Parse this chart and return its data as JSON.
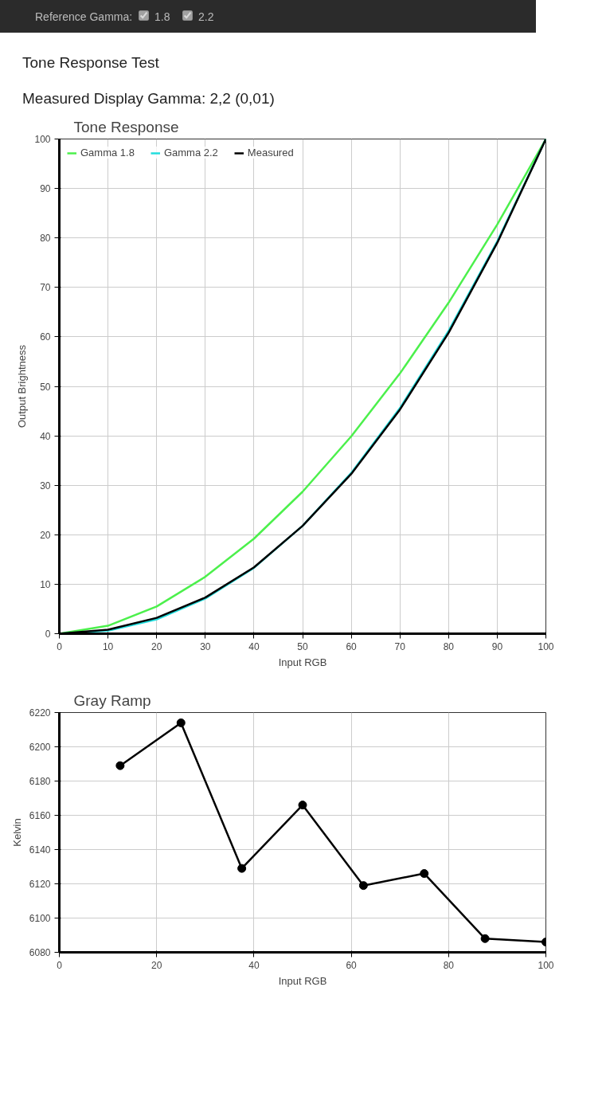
{
  "chart_data": [
    {
      "type": "line",
      "title": "Tone Response",
      "annotations": [
        "Reference Gamma:",
        "1.8",
        "2.2",
        "Tone Response Test",
        "Measured Display Gamma: 2,2 (0,01)"
      ],
      "xlabel": "Input RGB",
      "ylabel": "Output Brightness",
      "x": [
        0,
        10,
        20,
        30,
        40,
        50,
        60,
        70,
        80,
        90,
        100
      ],
      "series": [
        {
          "name": "Gamma 1.8",
          "color": "#4cf04c",
          "values": [
            0,
            1.6,
            5.5,
            11.5,
            19.2,
            28.7,
            39.9,
            52.6,
            66.9,
            82.7,
            100
          ]
        },
        {
          "name": "Gamma 2.2",
          "color": "#22dddd",
          "values": [
            0,
            0.6,
            2.9,
            7.1,
            13.3,
            21.8,
            32.5,
            45.6,
            61.2,
            79.3,
            100
          ]
        },
        {
          "name": "Measured",
          "color": "#000000",
          "values": [
            0,
            0.8,
            3.2,
            7.3,
            13.4,
            21.8,
            32.3,
            45.3,
            60.8,
            79.0,
            100
          ]
        }
      ],
      "xlim": [
        0,
        100
      ],
      "xticks": [
        0,
        10,
        20,
        30,
        40,
        50,
        60,
        70,
        80,
        90,
        100
      ],
      "ylim": [
        0,
        100
      ],
      "yticks": [
        0,
        10,
        20,
        30,
        40,
        50,
        60,
        70,
        80,
        90,
        100
      ],
      "grid": true,
      "legend": "top left",
      "marker": "none",
      "line_style": "solid"
    },
    {
      "type": "line",
      "title": "Gray Ramp",
      "xlabel": "Input RGB",
      "ylabel": "Kelvin",
      "x": [
        12.5,
        25,
        37.5,
        50,
        62.5,
        75,
        87.5,
        100
      ],
      "series": [
        {
          "color": "#000000",
          "values": [
            6189,
            6214,
            6129,
            6166,
            6119,
            6126,
            6088,
            6086
          ]
        }
      ],
      "xlim": [
        0,
        100
      ],
      "xticks": [
        0,
        20,
        40,
        60,
        80,
        100
      ],
      "ylim": [
        6080,
        6220
      ],
      "yticks": [
        6080,
        6100,
        6120,
        6140,
        6160,
        6180,
        6200,
        6220
      ],
      "grid": true,
      "marker": "circle",
      "line_style": "solid"
    }
  ]
}
